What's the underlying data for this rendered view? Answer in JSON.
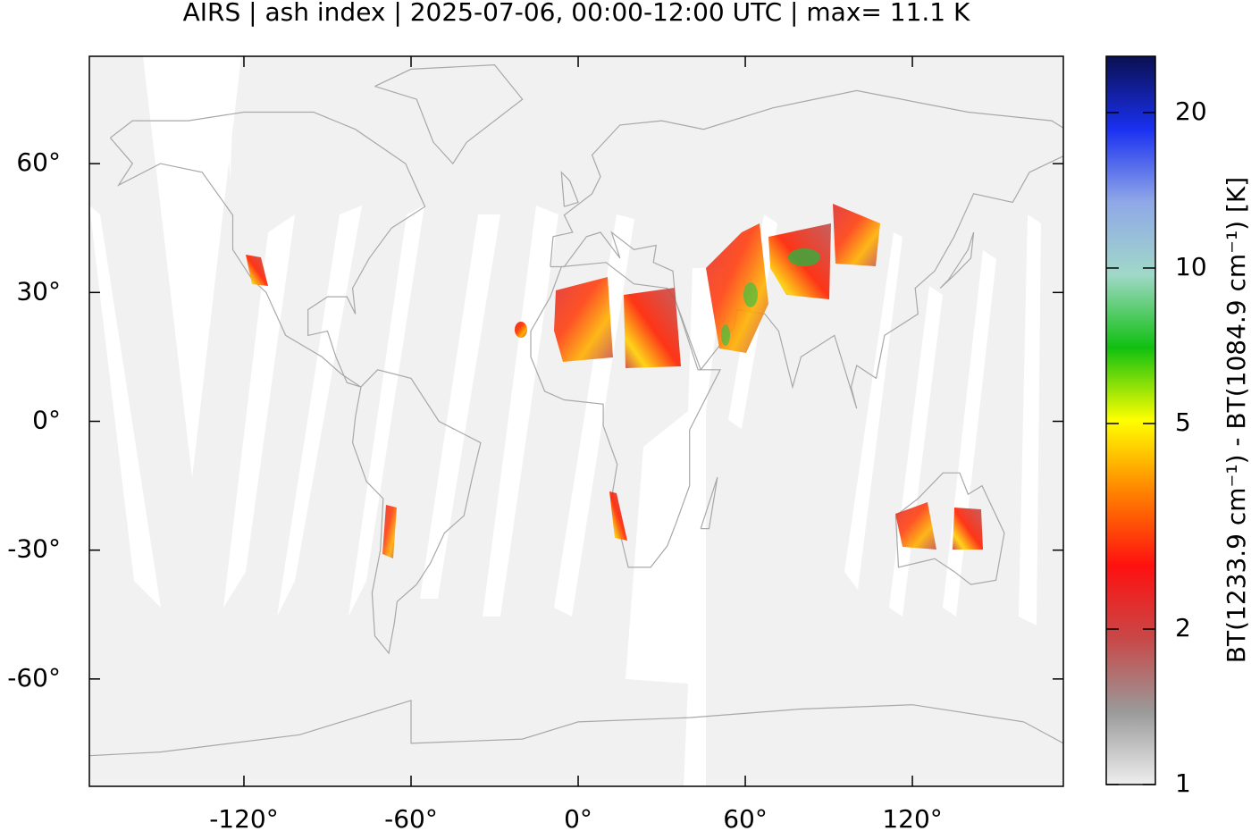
{
  "chart_data": {
    "type": "map",
    "title": "AIRS | ash index | 2025-07-06, 00:00-12:00 UTC | max= 11.1 K",
    "xlim": [
      -175.5,
      174.2
    ],
    "ylim": [
      -85,
      85
    ],
    "xticks": [
      {
        "value": -120,
        "label": "-120°"
      },
      {
        "value": -60,
        "label": "-60°"
      },
      {
        "value": 0,
        "label": "0°"
      },
      {
        "value": 60,
        "label": "60°"
      },
      {
        "value": 120,
        "label": "120°"
      }
    ],
    "yticks": [
      {
        "value": 60,
        "label": "60°"
      },
      {
        "value": 30,
        "label": "30°"
      },
      {
        "value": 0,
        "label": "0°"
      },
      {
        "value": -30,
        "label": "-30°"
      },
      {
        "value": -60,
        "label": "-60°"
      }
    ],
    "colorbar": {
      "label": "BT(1233.9 cm⁻¹) - BT(1084.9 cm⁻¹) [K]",
      "log": true,
      "lim": [
        1,
        25.7
      ],
      "ticks": [
        1,
        2,
        5,
        10,
        20
      ],
      "colors": [
        "#eeeeee",
        "#9a9a9a",
        "#c84848",
        "#ff1010",
        "#ff8000",
        "#ffff00",
        "#10c010",
        "#a0d8c8",
        "#90a8e8",
        "#1a30f0",
        "#0a1050"
      ]
    }
  }
}
